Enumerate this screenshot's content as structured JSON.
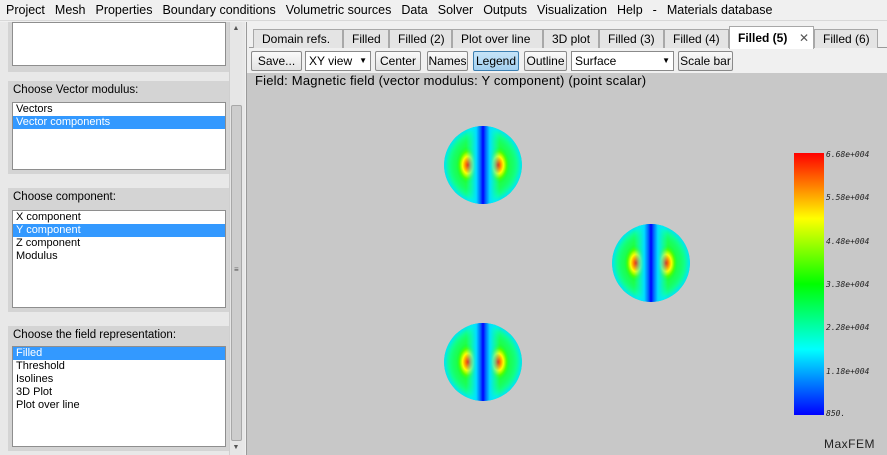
{
  "menu": [
    "Project",
    "Mesh",
    "Properties",
    "Boundary conditions",
    "Volumetric sources",
    "Data",
    "Solver",
    "Outputs",
    "Visualization",
    "Help",
    "-",
    "Materials database"
  ],
  "left_panel": {
    "vector_modulus": {
      "title": "Choose Vector modulus:",
      "items": [
        "Vectors",
        "Vector components"
      ],
      "selected": "Vector components"
    },
    "component": {
      "title": "Choose component:",
      "items": [
        "X component",
        "Y component",
        "Z component",
        "Modulus"
      ],
      "selected": "Y component"
    },
    "representation": {
      "title": "Choose the field representation:",
      "items": [
        "Filled",
        "Threshold",
        "Isolines",
        "3D Plot",
        "Plot over line"
      ],
      "selected": "Filled"
    }
  },
  "tabs": [
    "Domain refs.",
    "Filled",
    "Filled (2)",
    "Plot over line",
    "3D plot",
    "Filled (3)",
    "Filled (4)",
    "Filled (5)",
    "Filled (6)"
  ],
  "active_tab": "Filled (5)",
  "toolbar": {
    "save": "Save...",
    "view_select": "XY view",
    "center": "Center",
    "names": "Names",
    "legend": "Legend",
    "legend_pressed": true,
    "outline": "Outline",
    "surface_select": "Surface",
    "scale_bar": "Scale bar"
  },
  "field_title": "Field: Magnetic field (vector modulus: Y component) (point scalar)",
  "colorbar": {
    "labels": [
      "6.68e+004",
      "5.58e+004",
      "4.48e+004",
      "3.38e+004",
      "2.28e+004",
      "1.18e+004",
      "850."
    ],
    "colors": [
      "#ff0000",
      "#ffff00",
      "#00ff00",
      "#00ffff",
      "#0000ff"
    ]
  },
  "watermark": "MaxFEM",
  "colors": {
    "selection": "#3399ff",
    "canvas": "#c8c8c8",
    "panel_group": "#d4d4d4"
  }
}
